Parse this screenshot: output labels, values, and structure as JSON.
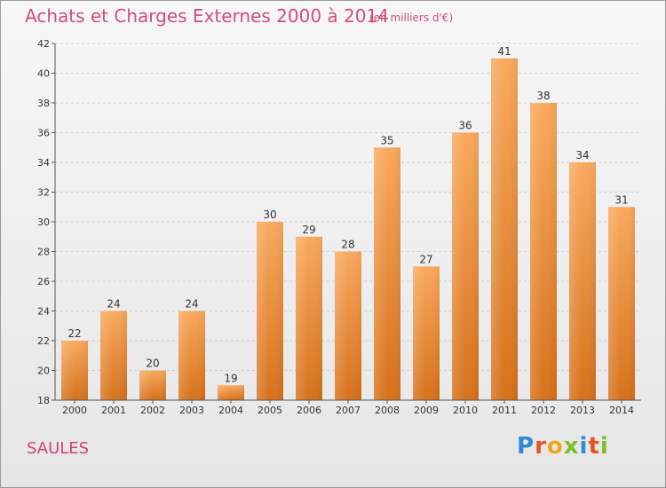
{
  "title": "Achats et Charges Externes 2000 à 2014",
  "subtitle": "(en milliers d'€)",
  "location": "SAULES",
  "brand": {
    "text": "Proxiti",
    "letters": [
      {
        "char": "P",
        "color": "#2e8bd8"
      },
      {
        "char": "r",
        "color": "#e8542a"
      },
      {
        "char": "o",
        "color": "#f2a31b"
      },
      {
        "char": "x",
        "color": "#7bbf2a"
      },
      {
        "char": "i",
        "color": "#2e8bd8"
      },
      {
        "char": "t",
        "color": "#e8542a"
      },
      {
        "char": "i",
        "color": "#7bbf2a"
      }
    ]
  },
  "colors": {
    "title": "#d34d7b",
    "bar_light": "#f8a65a",
    "bar_dark": "#d9741e"
  },
  "chart_data": {
    "type": "bar",
    "categories": [
      "2000",
      "2001",
      "2002",
      "2003",
      "2004",
      "2005",
      "2006",
      "2007",
      "2008",
      "2009",
      "2010",
      "2011",
      "2012",
      "2013",
      "2014"
    ],
    "values": [
      22,
      24,
      20,
      24,
      19,
      30,
      29,
      28,
      35,
      27,
      36,
      41,
      38,
      34,
      31
    ],
    "ylim": [
      18,
      42
    ],
    "yticks": [
      18,
      20,
      22,
      24,
      26,
      28,
      30,
      32,
      34,
      36,
      38,
      40,
      42
    ],
    "grid": true
  }
}
